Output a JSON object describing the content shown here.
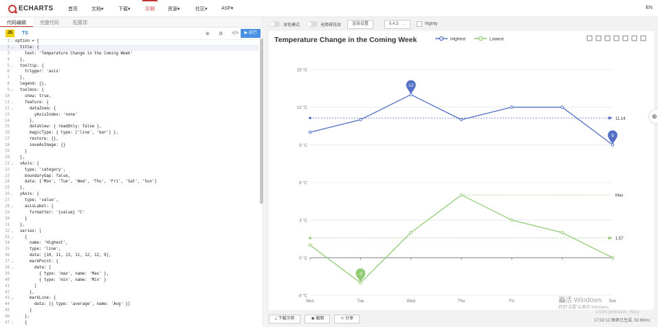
{
  "nav": {
    "logo_text": "ECHARTS",
    "items": [
      {
        "label": "首页"
      },
      {
        "label": "文档▾"
      },
      {
        "label": "下载▾"
      },
      {
        "label": "示例"
      },
      {
        "label": "资源▾"
      },
      {
        "label": "社区▾"
      },
      {
        "label": "ASF▾"
      }
    ],
    "lang": "EN"
  },
  "editor": {
    "tabs": [
      "代码编辑",
      "完整代码",
      "配置项"
    ],
    "lang_js": "JS",
    "lang_ts": "TS",
    "run_label": "运行",
    "lines": [
      "option = {",
      "  title: {",
      "    text: 'Temperature Change in the Coming Week'",
      "  },",
      "  tooltip: {",
      "    trigger: 'axis'",
      "  },",
      "  legend: {},",
      "  toolbox: {",
      "    show: true,",
      "    feature: {",
      "      dataZoom: {",
      "        yAxisIndex: 'none'",
      "      },",
      "      dataView: { readOnly: false },",
      "      magicType: { type: ['line', 'bar'] },",
      "      restore: {},",
      "      saveAsImage: {}",
      "    }",
      "  },",
      "  xAxis: {",
      "    type: 'category',",
      "    boundaryGap: false,",
      "    data: ['Mon', 'Tue', 'Wed', 'Thu', 'Fri', 'Sat', 'Sun']",
      "  },",
      "  yAxis: {",
      "    type: 'value',",
      "    axisLabel: {",
      "      formatter: '{value} °C'",
      "    }",
      "  },",
      "  series: [",
      "    {",
      "      name: 'Highest',",
      "      type: 'line',",
      "      data: [10, 11, 13, 11, 12, 12, 9],",
      "      markPoint: {",
      "        data: [",
      "          { type: 'max', name: 'Max' },",
      "          { type: 'min', name: 'Min' }",
      "        ]",
      "      },",
      "      markLine: {",
      "        data: [{ type: 'average', name: 'Avg' }]",
      "      }",
      "    },",
      "    {"
    ]
  },
  "preview": {
    "dark_mode_label": "深色模式",
    "barrier_free_label": "无障碍花纹",
    "render_label": "渲染设置",
    "version": "5.4.3",
    "nightly_label": "Nightly",
    "buttons": [
      "下载示例",
      "截图",
      "分享"
    ],
    "status": "17:02:12  图表已生成, 92.60ms",
    "watermark_main": "激活 Windows",
    "watermark_sub": "转到\"设置\"以激活 Windows。",
    "csdn": "CSDN @Wisdom_Rocy"
  },
  "colors": {
    "highest": "#5470c6",
    "lowest": "#91cc75",
    "accent": "#c23531",
    "run": "#4a90e2"
  },
  "chart_data": {
    "type": "line",
    "title": "Temperature Change in the Coming Week",
    "categories": [
      "Mon",
      "Tue",
      "Wed",
      "Thu",
      "Fri",
      "Sat",
      "Sun"
    ],
    "ylim": [
      -3,
      15
    ],
    "yticks": [
      -3,
      0,
      3,
      6,
      9,
      12,
      15
    ],
    "y_unit": "°C",
    "legend_position": "top",
    "series": [
      {
        "name": "Highest",
        "color": "#5470c6",
        "values": [
          10,
          11,
          13,
          11,
          12,
          12,
          9
        ],
        "mark_points": [
          {
            "index": 2,
            "label": "13"
          },
          {
            "index": 6,
            "label": "9"
          }
        ],
        "mark_line": {
          "value": 11.14,
          "label": "11.14"
        }
      },
      {
        "name": "Lowest",
        "color": "#91cc75",
        "values": [
          1,
          -2,
          2,
          5,
          3,
          2,
          0
        ],
        "mark_points": [
          {
            "index": 1,
            "label": "-2"
          }
        ],
        "mark_line": {
          "value": 1.57,
          "label": "1.57"
        },
        "max_line": {
          "value": 5,
          "label": "Max"
        }
      }
    ]
  }
}
